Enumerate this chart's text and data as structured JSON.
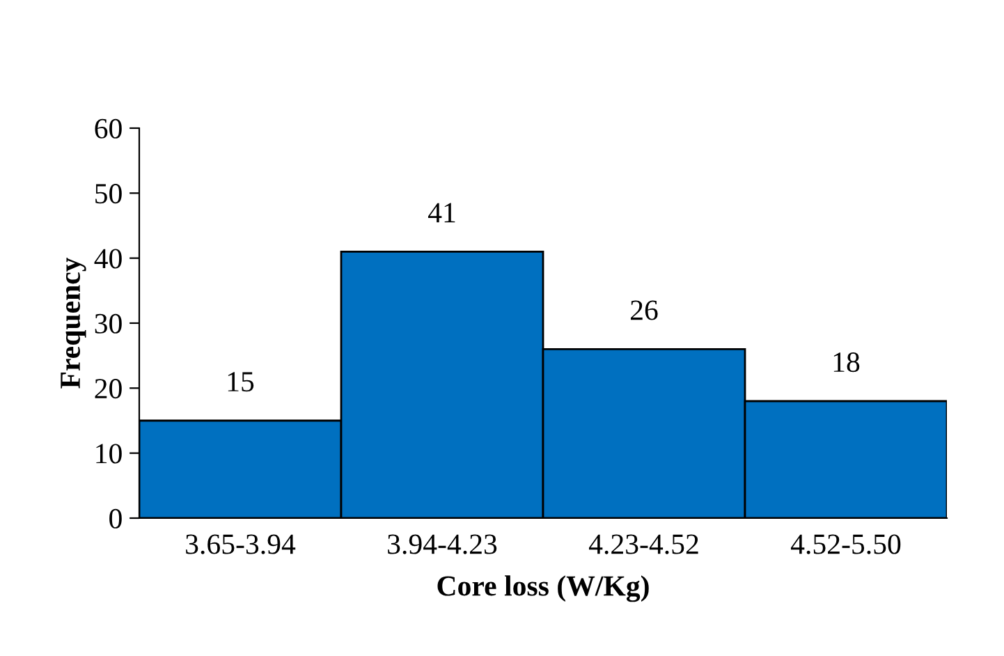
{
  "chart_data": {
    "type": "bar",
    "categories": [
      "3.65-3.94",
      "3.94-4.23",
      "4.23-4.52",
      "4.52-5.50"
    ],
    "values": [
      15,
      41,
      26,
      18
    ],
    "color": "#0070c0",
    "xlabel": "Core loss (W/Kg)",
    "ylabel": "Frequency",
    "ylim": [
      0,
      60
    ],
    "yticks": [
      0,
      10,
      20,
      30,
      40,
      50,
      60
    ],
    "data_labels": true,
    "grid": false,
    "legend": false
  }
}
